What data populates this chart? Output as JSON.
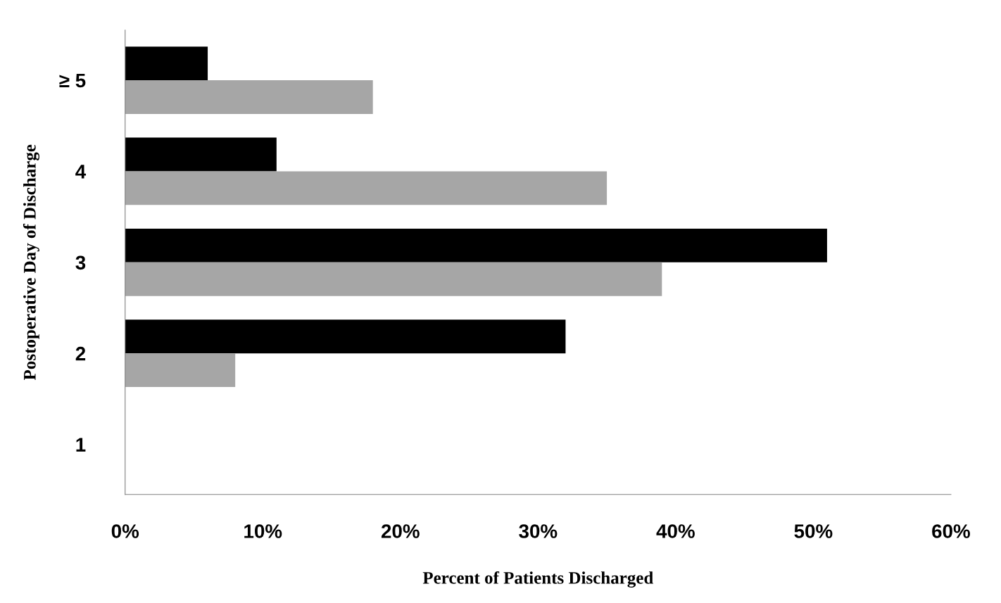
{
  "chart_data": {
    "type": "bar",
    "orientation": "horizontal",
    "xlabel": "Percent of Patients Discharged",
    "ylabel": "Postoperative Day of Discharge",
    "categories": [
      "≥ 5",
      "4",
      "3",
      "2",
      "1"
    ],
    "series": [
      {
        "color": "#000000",
        "values": [
          6,
          11,
          51,
          32,
          0
        ]
      },
      {
        "color": "#a6a6a6",
        "values": [
          18,
          35,
          39,
          8,
          0
        ]
      }
    ],
    "xlim": [
      0,
      60
    ],
    "xticks": [
      {
        "value": 0,
        "label": "0%"
      },
      {
        "value": 10,
        "label": "10%"
      },
      {
        "value": 20,
        "label": "20%"
      },
      {
        "value": 30,
        "label": "30%"
      },
      {
        "value": 40,
        "label": "40%"
      },
      {
        "value": 50,
        "label": "50%"
      },
      {
        "value": 60,
        "label": "60%"
      }
    ],
    "grid": false
  }
}
